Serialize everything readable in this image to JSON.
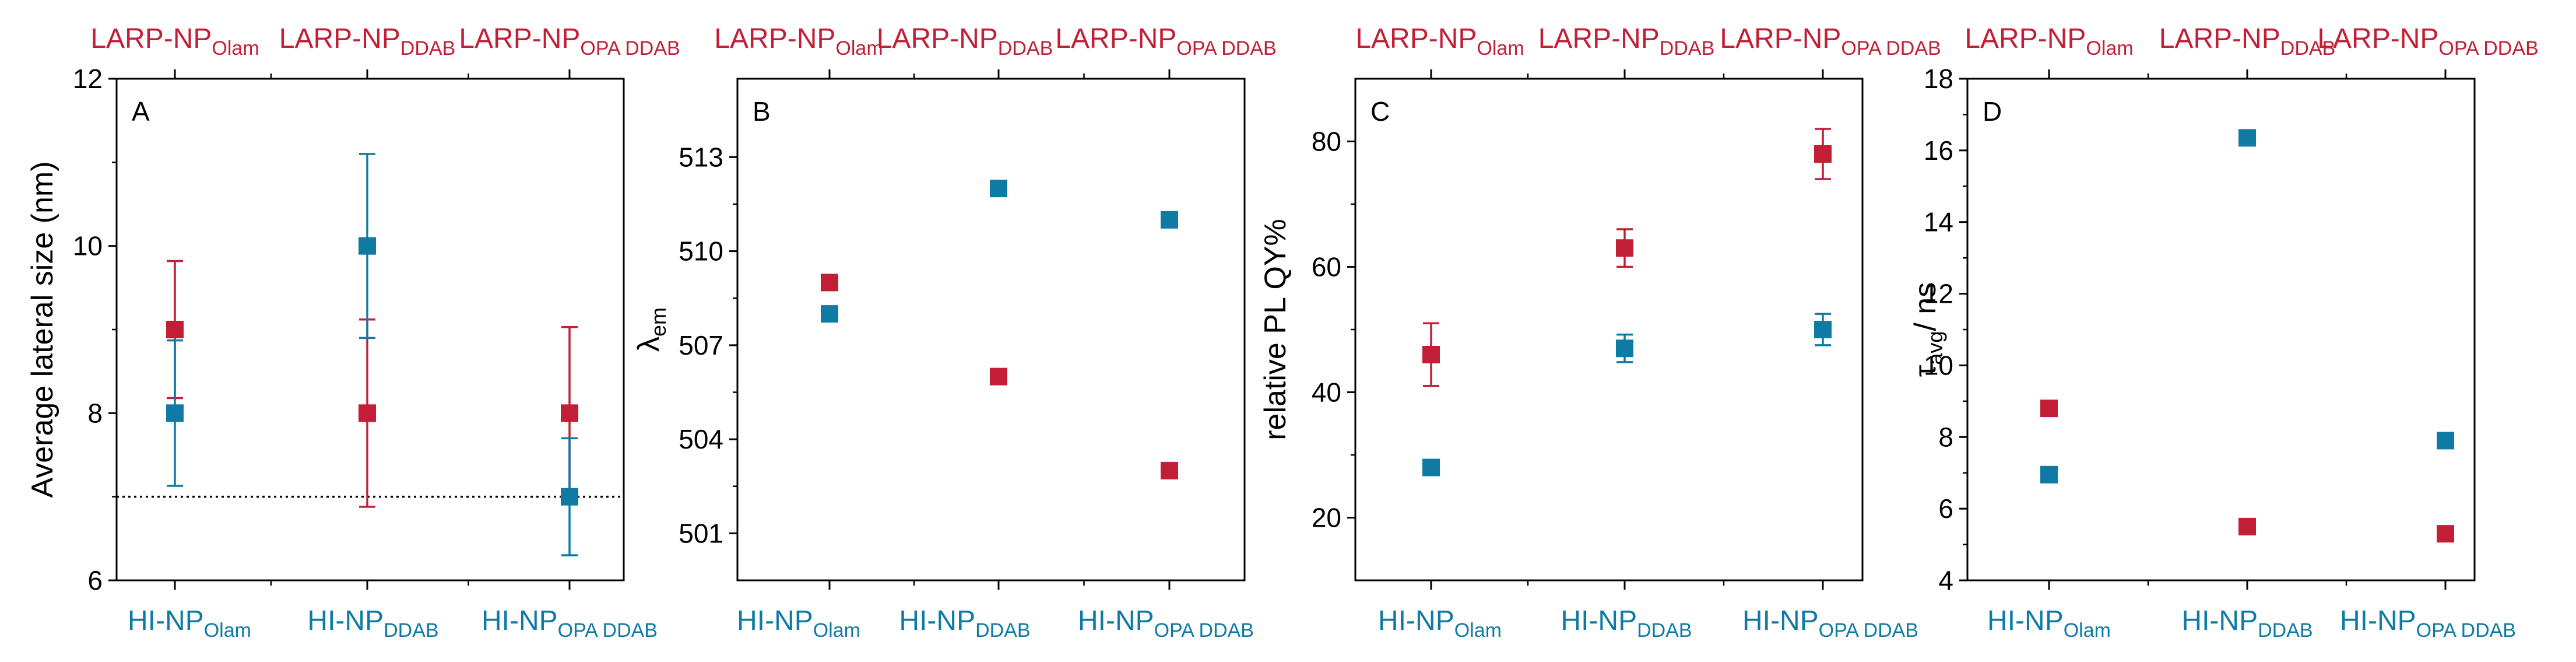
{
  "colors": {
    "red": "#c21e35",
    "blue": "#0f7aa3",
    "axis": "#000000"
  },
  "chart_data": [
    {
      "type": "scatter",
      "panel": "A",
      "title": "",
      "ylabel": "Average lateral size (nm)",
      "ylim": [
        6,
        12
      ],
      "yticks": [
        6,
        8,
        10,
        12
      ],
      "ytick_labels": [
        "6",
        "8",
        "10",
        "12"
      ],
      "categories_bottom": [
        {
          "base": "HI-NP",
          "sub": "Olam"
        },
        {
          "base": "HI-NP",
          "sub": "DDAB"
        },
        {
          "base": "HI-NP",
          "sub": "OPA DDAB"
        }
      ],
      "categories_top": [
        {
          "base": "LARP-NP",
          "sub": "Olam"
        },
        {
          "base": "LARP-NP",
          "sub": "DDAB"
        },
        {
          "base": "LARP-NP",
          "sub": "OPA DDAB"
        }
      ],
      "reference_line": 7,
      "series": [
        {
          "name": "LARP-NP",
          "color": "red",
          "values": [
            9,
            8,
            8
          ],
          "errors": [
            0.82,
            1.12,
            1.03
          ]
        },
        {
          "name": "HI-NP",
          "color": "blue",
          "values": [
            8,
            10,
            7
          ],
          "errors": [
            0.87,
            1.1,
            0.7
          ]
        }
      ]
    },
    {
      "type": "scatter",
      "panel": "B",
      "title": "",
      "ylabel": {
        "base": "λ",
        "sub": "em"
      },
      "ylim": [
        499.5,
        515.5
      ],
      "yticks": [
        501,
        504,
        507,
        510,
        513
      ],
      "ytick_labels": [
        "501",
        "504",
        "507",
        "510",
        "513"
      ],
      "categories_bottom": [
        {
          "base": "HI-NP",
          "sub": "Olam"
        },
        {
          "base": "HI-NP",
          "sub": "DDAB"
        },
        {
          "base": "HI-NP",
          "sub": "OPA DDAB"
        }
      ],
      "categories_top": [
        {
          "base": "LARP-NP",
          "sub": "Olam"
        },
        {
          "base": "LARP-NP",
          "sub": "DDAB"
        },
        {
          "base": "LARP-NP",
          "sub": "OPA DDAB"
        }
      ],
      "series": [
        {
          "name": "LARP-NP",
          "color": "red",
          "values": [
            509,
            506,
            503
          ],
          "errors": [
            0,
            0,
            0
          ]
        },
        {
          "name": "HI-NP",
          "color": "blue",
          "values": [
            508,
            512,
            511
          ],
          "errors": [
            0,
            0,
            0
          ]
        }
      ]
    },
    {
      "type": "scatter",
      "panel": "C",
      "title": "",
      "ylabel": "relative PL QY%",
      "ylim": [
        10,
        90
      ],
      "yticks": [
        20,
        40,
        60,
        80
      ],
      "ytick_labels": [
        "20",
        "40",
        "60",
        "80"
      ],
      "categories_bottom": [
        {
          "base": "HI-NP",
          "sub": "Olam"
        },
        {
          "base": "HI-NP",
          "sub": "DDAB"
        },
        {
          "base": "HI-NP",
          "sub": "OPA DDAB"
        }
      ],
      "categories_top": [
        {
          "base": "LARP-NP",
          "sub": "Olam"
        },
        {
          "base": "LARP-NP",
          "sub": "DDAB"
        },
        {
          "base": "LARP-NP",
          "sub": "OPA DDAB"
        }
      ],
      "series": [
        {
          "name": "LARP-NP",
          "color": "red",
          "values": [
            46,
            63,
            78
          ],
          "errors": [
            5,
            3,
            4
          ]
        },
        {
          "name": "HI-NP",
          "color": "blue",
          "values": [
            28,
            47,
            50
          ],
          "errors": [
            1.2,
            2.2,
            2.5
          ]
        }
      ]
    },
    {
      "type": "scatter",
      "panel": "D",
      "title": "",
      "ylabel": {
        "base": "τ",
        "sub": "avg",
        "suffix": "/ ns"
      },
      "ylim": [
        4,
        18
      ],
      "yticks": [
        4,
        6,
        8,
        10,
        12,
        14,
        16,
        18
      ],
      "ytick_labels": [
        "4",
        "6",
        "8",
        "10",
        "12",
        "14",
        "16",
        "18"
      ],
      "categories_bottom": [
        {
          "base": "HI-NP",
          "sub": "Olam"
        },
        {
          "base": "HI-NP",
          "sub": "DDAB"
        },
        {
          "base": "HI-NP",
          "sub": "OPA DDAB"
        }
      ],
      "categories_top": [
        {
          "base": "LARP-NP",
          "sub": "Olam"
        },
        {
          "base": "LARP-NP",
          "sub": "DDAB"
        },
        {
          "base": "LARP-NP",
          "sub": "OPA DDAB"
        }
      ],
      "series": [
        {
          "name": "LARP-NP",
          "color": "red",
          "values": [
            8.8,
            5.5,
            5.3
          ],
          "errors": [
            0,
            0,
            0
          ]
        },
        {
          "name": "HI-NP",
          "color": "blue",
          "values": [
            6.95,
            16.35,
            7.9
          ],
          "errors": [
            0,
            0,
            0
          ]
        }
      ]
    }
  ]
}
